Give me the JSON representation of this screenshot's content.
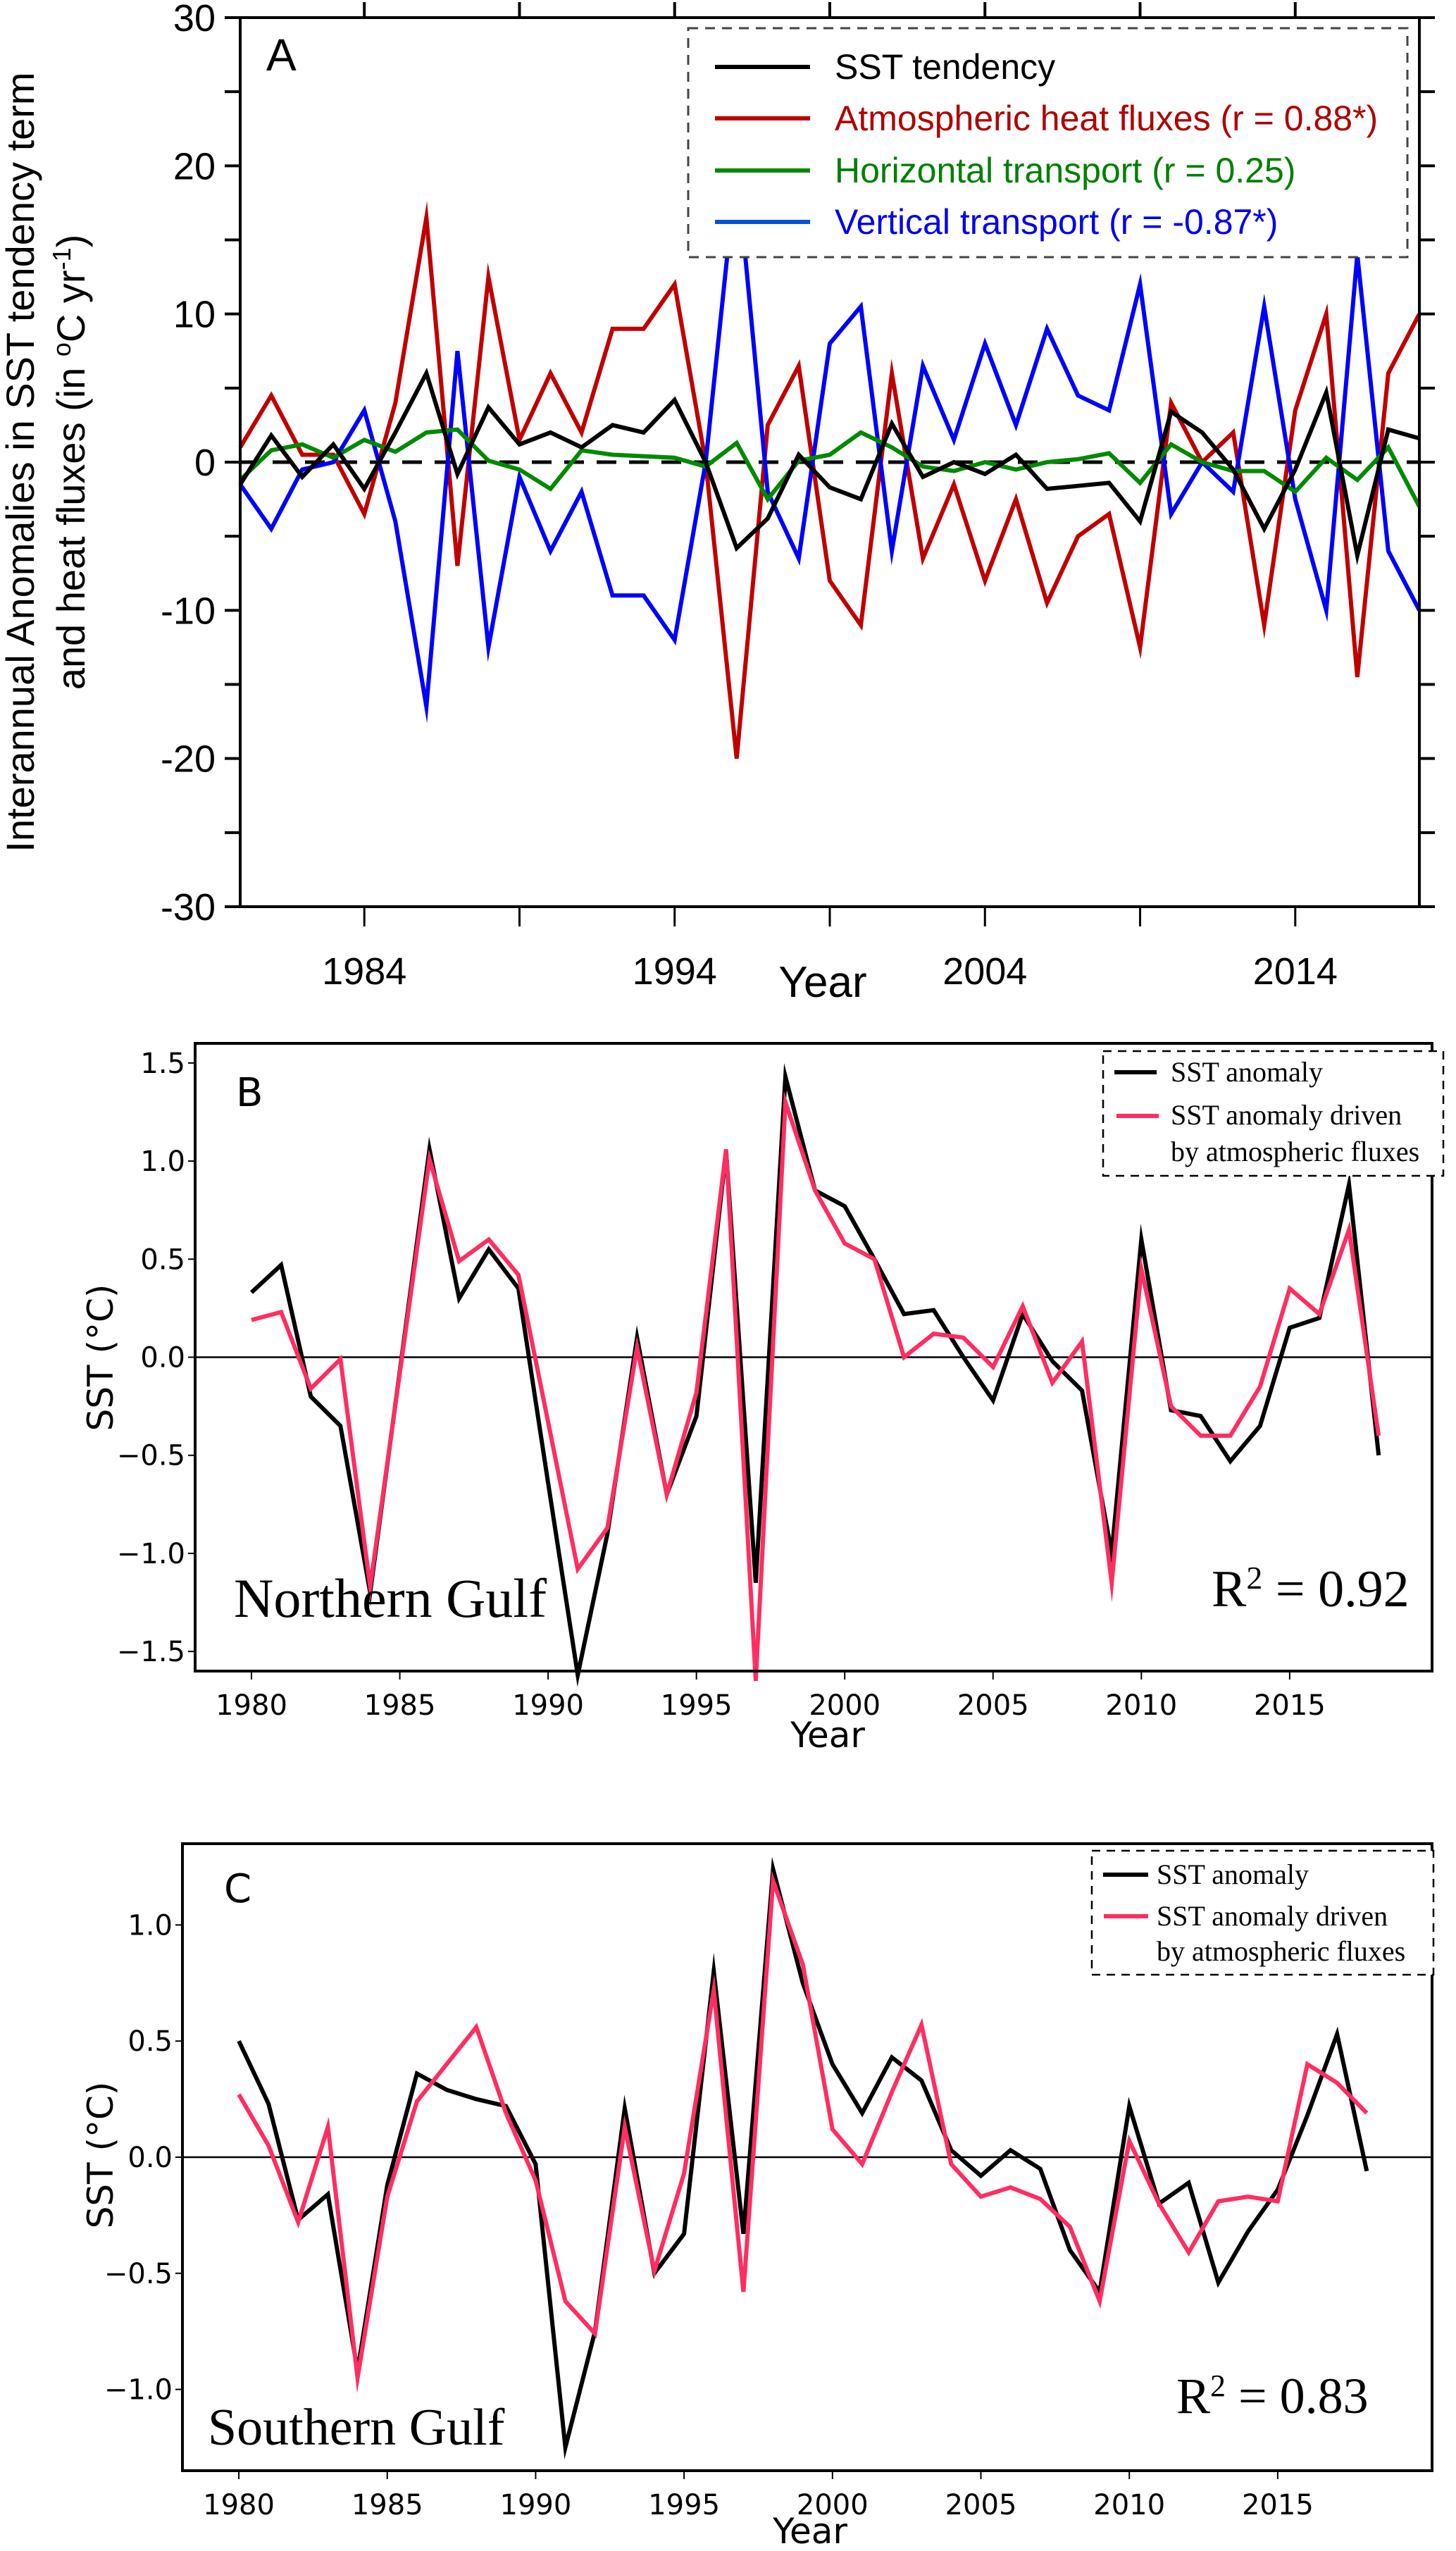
{
  "chart_data": [
    {
      "id": "A",
      "type": "line",
      "panel_label": "A",
      "title": "",
      "xlabel": "Year",
      "ylabel": "Interannual Anomalies in SST tendency term and heat fluxes (in °C yr⁻¹)",
      "ylabel_line1": "Interannual Anomalies in SST tendency term",
      "ylabel_line2_pre": "and heat fluxes (in ",
      "ylabel_line2_deg": "o",
      "ylabel_line2_mid": "C yr",
      "ylabel_line2_sup": "-1",
      "ylabel_line2_post": ")",
      "xlim": [
        1980,
        2018
      ],
      "ylim": [
        -30,
        30
      ],
      "xticks_major": [
        1984,
        1989,
        1994,
        1999,
        2004,
        2009,
        2014
      ],
      "xtick_labels": [
        "1984",
        "1994",
        "2004",
        "2014"
      ],
      "yticks": [
        30,
        20,
        10,
        0,
        -10,
        -20,
        -30
      ],
      "ytick_labels": [
        "30",
        "20",
        "10",
        "0",
        "-10",
        "-20",
        "-30"
      ],
      "zero_line": "dashed",
      "grid": false,
      "legend_position": "top-right",
      "x": [
        1980,
        1981,
        1982,
        1983,
        1984,
        1985,
        1986,
        1987,
        1988,
        1989,
        1990,
        1991,
        1992,
        1993,
        1994,
        1995,
        1996,
        1997,
        1998,
        1999,
        2000,
        2001,
        2002,
        2003,
        2004,
        2005,
        2006,
        2007,
        2008,
        2009,
        2010,
        2011,
        2012,
        2013,
        2014,
        2015,
        2016,
        2017,
        2018
      ],
      "series": [
        {
          "name": "SST tendency",
          "color": "#000000",
          "values": [
            -1.5,
            1.8,
            -1.0,
            1.2,
            -1.8,
            2.0,
            6.0,
            -0.8,
            3.7,
            1.2,
            2.0,
            1.0,
            2.5,
            2.0,
            4.2,
            0.0,
            -5.8,
            -3.8,
            0.5,
            -1.7,
            -2.5,
            2.6,
            -1.0,
            0.0,
            -0.8,
            0.5,
            -1.8,
            -1.6,
            -1.4,
            -4.0,
            3.4,
            2.0,
            -0.5,
            -4.5,
            -0.5,
            4.7,
            -6.3,
            2.2,
            1.6
          ]
        },
        {
          "name": "Atmospheric heat fluxes (r = 0.88*)",
          "color": "#c00000",
          "values": [
            1.0,
            4.5,
            0.5,
            0.5,
            -3.5,
            4.0,
            16.5,
            -7.0,
            12.5,
            1.5,
            6.0,
            2.0,
            9.0,
            9.0,
            12.0,
            0.0,
            -20.0,
            2.5,
            6.5,
            -8.0,
            -11.0,
            6.0,
            -6.5,
            -1.5,
            -8.0,
            -2.5,
            -9.5,
            -5.0,
            -3.5,
            -12.5,
            4.0,
            0.0,
            2.0,
            -11.0,
            3.5,
            10.0,
            -14.5,
            6.0,
            10.0
          ]
        },
        {
          "name": "Horizontal transport (r = 0.25)",
          "color": "#008a00",
          "values": [
            -1.2,
            0.8,
            1.2,
            0.3,
            1.5,
            0.7,
            2.0,
            2.2,
            0.1,
            -0.5,
            -1.8,
            0.8,
            0.5,
            0.4,
            0.3,
            -0.3,
            1.3,
            -2.5,
            0.1,
            0.5,
            2.0,
            1.0,
            -0.3,
            -0.6,
            0.0,
            -0.5,
            0.0,
            0.2,
            0.6,
            -1.4,
            1.2,
            0.0,
            -0.6,
            -0.6,
            -2.0,
            0.3,
            -1.2,
            1.0,
            -3.0
          ]
        },
        {
          "name": "Vertical transport (r = -0.87*)",
          "color": "#0000ff",
          "values": [
            -1.5,
            -4.5,
            -0.5,
            0.0,
            3.5,
            -4.0,
            -16.5,
            7.5,
            -12.5,
            -1.0,
            -6.0,
            -2.0,
            -9.0,
            -9.0,
            -12.0,
            0.0,
            20.0,
            -2.0,
            -6.5,
            8.0,
            10.5,
            -6.0,
            6.5,
            1.5,
            8.0,
            2.5,
            9.0,
            4.5,
            3.5,
            12.0,
            -3.5,
            0.0,
            -2.0,
            10.5,
            -2.5,
            -10.0,
            14.0,
            -6.0,
            -10.0
          ]
        }
      ],
      "legend": [
        {
          "label": "SST tendency",
          "color": "#000000",
          "text_color": "#000000"
        },
        {
          "label": "Atmospheric heat fluxes (r = 0.88*)",
          "color": "#c00000",
          "text_color": "#b00000"
        },
        {
          "label": "Horizontal transport (r = 0.25)",
          "color": "#008a00",
          "text_color": "#008000"
        },
        {
          "label": "Vertical transport (r = -0.87*)",
          "color": "#0055dd",
          "text_color": "#0000ee"
        }
      ]
    },
    {
      "id": "B",
      "type": "line",
      "panel_label": "B",
      "title": "",
      "region_label": "Northern Gulf",
      "annotation": {
        "r2_prefix": "R",
        "r2_sup": "2",
        "r2_value": " = 0.92"
      },
      "xlabel": "Year",
      "ylabel": "SST (°C)",
      "xlim": [
        1978.1,
        2019.8
      ],
      "ylim": [
        -1.6,
        1.6
      ],
      "xticks": [
        1980,
        1985,
        1990,
        1995,
        2000,
        2005,
        2010,
        2015
      ],
      "xtick_labels": [
        "1980",
        "1985",
        "1990",
        "1995",
        "2000",
        "2005",
        "2010",
        "2015"
      ],
      "yticks": [
        1.5,
        1.0,
        0.5,
        0.0,
        -0.5,
        -1.0,
        -1.5
      ],
      "ytick_labels": [
        "1.5",
        "1.0",
        "0.5",
        "0.0",
        "−0.5",
        "−1.0",
        "−1.5"
      ],
      "zero_line": "solid",
      "grid": false,
      "legend_position": "top-right",
      "x": [
        1980,
        1981,
        1982,
        1983,
        1984,
        1985,
        1986,
        1987,
        1988,
        1989,
        1990,
        1991,
        1992,
        1993,
        1994,
        1995,
        1996,
        1997,
        1998,
        1999,
        2000,
        2001,
        2002,
        2003,
        2004,
        2005,
        2006,
        2007,
        2008,
        2009,
        2010,
        2011,
        2012,
        2013,
        2014,
        2015,
        2016,
        2017,
        2018
      ],
      "series": [
        {
          "name": "SST anomaly",
          "color": "#000000",
          "values": [
            0.33,
            0.47,
            -0.2,
            -0.35,
            -1.2,
            -0.07,
            1.06,
            0.3,
            0.55,
            0.35,
            -0.64,
            -1.62,
            -0.9,
            0.1,
            -0.7,
            -0.3,
            1.05,
            -1.15,
            1.43,
            0.85,
            0.77,
            0.5,
            0.22,
            0.24,
            0.0,
            -0.22,
            0.22,
            -0.02,
            -0.17,
            -1.0,
            0.6,
            -0.27,
            -0.3,
            -0.53,
            -0.35,
            0.15,
            0.2,
            0.88,
            -0.5
          ]
        },
        {
          "name": "SST anomaly driven by atmospheric fluxes",
          "color": "#ff2d60",
          "values": [
            0.19,
            0.23,
            -0.16,
            -0.01,
            -1.17,
            -0.08,
            1.01,
            0.49,
            0.6,
            0.42,
            -0.33,
            -1.08,
            -0.87,
            0.05,
            -0.7,
            -0.18,
            1.06,
            -1.65,
            1.3,
            0.85,
            0.58,
            0.5,
            0.0,
            0.12,
            0.1,
            -0.05,
            0.26,
            -0.13,
            0.08,
            -1.15,
            0.45,
            -0.25,
            -0.4,
            -0.4,
            -0.15,
            0.35,
            0.22,
            0.65,
            -0.4
          ]
        }
      ],
      "legend": [
        {
          "label": "SST anomaly",
          "color": "#000000"
        },
        {
          "label_line1": "SST anomaly driven",
          "label_line2": "by atmospheric fluxes",
          "color": "#ff2d60"
        }
      ]
    },
    {
      "id": "C",
      "type": "line",
      "panel_label": "C",
      "title": "",
      "region_label": "Southern Gulf",
      "annotation": {
        "r2_prefix": "R",
        "r2_sup": "2",
        "r2_value": " = 0.83"
      },
      "xlabel": "Year",
      "ylabel": "SST (°C)",
      "xlim": [
        1978.1,
        2020.2
      ],
      "ylim": [
        -1.35,
        1.35
      ],
      "xticks": [
        1980,
        1985,
        1990,
        1995,
        2000,
        2005,
        2010,
        2015
      ],
      "xtick_labels": [
        "1980",
        "1985",
        "1990",
        "1995",
        "2000",
        "2005",
        "2010",
        "2015"
      ],
      "yticks": [
        1.0,
        0.5,
        0.0,
        -0.5,
        -1.0
      ],
      "ytick_labels": [
        "1.0",
        "0.5",
        "0.0",
        "−0.5",
        "−1.0"
      ],
      "zero_line": "solid",
      "grid": false,
      "legend_position": "top-right",
      "x": [
        1980,
        1981,
        1982,
        1983,
        1984,
        1985,
        1986,
        1987,
        1988,
        1989,
        1990,
        1991,
        1992,
        1993,
        1994,
        1995,
        1996,
        1997,
        1998,
        1999,
        2000,
        2001,
        2002,
        2003,
        2004,
        2005,
        2006,
        2007,
        2008,
        2009,
        2010,
        2011,
        2012,
        2013,
        2014,
        2015,
        2016,
        2017,
        2018
      ],
      "series": [
        {
          "name": "SST anomaly",
          "color": "#000000",
          "values": [
            0.5,
            0.23,
            -0.27,
            -0.16,
            -0.92,
            -0.12,
            0.36,
            0.29,
            0.25,
            0.22,
            -0.03,
            -1.25,
            -0.75,
            0.21,
            -0.5,
            -0.33,
            0.8,
            -0.33,
            1.24,
            0.75,
            0.4,
            0.19,
            0.43,
            0.33,
            0.03,
            -0.08,
            0.03,
            -0.05,
            -0.4,
            -0.58,
            0.22,
            -0.2,
            -0.11,
            -0.54,
            -0.32,
            -0.14,
            0.18,
            0.53,
            -0.06
          ]
        },
        {
          "name": "SST anomaly driven by atmospheric fluxes",
          "color": "#ff2d60",
          "values": [
            0.27,
            0.05,
            -0.28,
            0.13,
            -0.95,
            -0.17,
            0.24,
            0.4,
            0.56,
            0.19,
            -0.1,
            -0.62,
            -0.76,
            0.13,
            -0.49,
            -0.07,
            0.72,
            -0.58,
            1.19,
            0.83,
            0.12,
            -0.03,
            0.28,
            0.57,
            -0.03,
            -0.17,
            -0.13,
            -0.18,
            -0.3,
            -0.62,
            0.07,
            -0.2,
            -0.41,
            -0.19,
            -0.17,
            -0.19,
            0.4,
            0.32,
            0.19
          ]
        }
      ],
      "legend": [
        {
          "label": "SST anomaly",
          "color": "#000000"
        },
        {
          "label_line1": "SST anomaly driven",
          "label_line2": "by atmospheric fluxes",
          "color": "#ff2d60"
        }
      ]
    }
  ]
}
